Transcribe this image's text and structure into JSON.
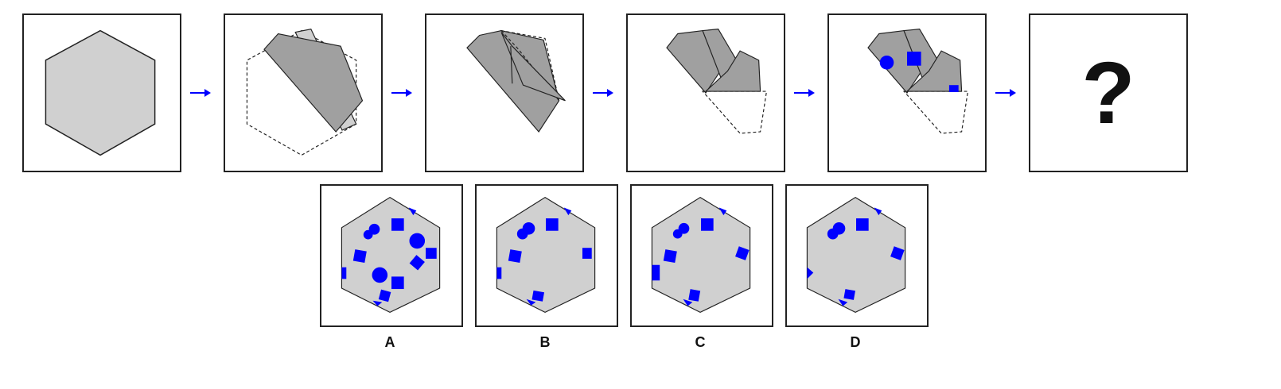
{
  "colors": {
    "paper": "#d0d0d0",
    "folded": "#a0a0a0",
    "hole": "#0000ff",
    "arrow": "#0000ff",
    "outline": "#222222"
  },
  "question_mark": "?",
  "options": [
    {
      "label": "A"
    },
    {
      "label": "B"
    },
    {
      "label": "C"
    },
    {
      "label": "D"
    }
  ]
}
